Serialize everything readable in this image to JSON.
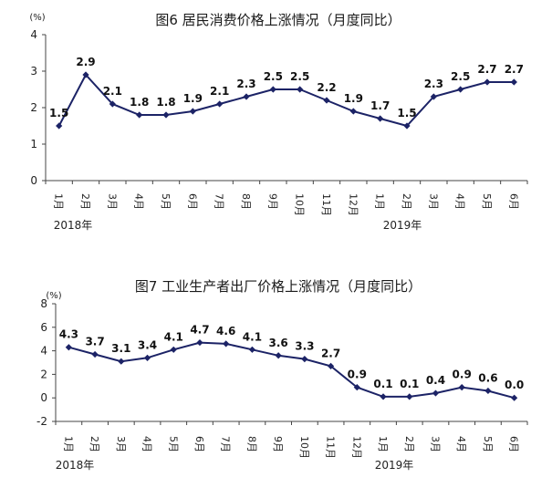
{
  "chart_data": [
    {
      "type": "line",
      "title": "图6   居民消费价格上涨情况（月度同比）",
      "unit": "(%)",
      "ylim": [
        0,
        4
      ],
      "yticks": [
        "0",
        "1",
        "2",
        "3",
        "4"
      ],
      "categories": [
        "1月",
        "2月",
        "3月",
        "4月",
        "5月",
        "6月",
        "7月",
        "8月",
        "9月",
        "10月",
        "11月",
        "12月",
        "1月",
        "2月",
        "3月",
        "4月",
        "5月",
        "6月"
      ],
      "year_labels": [
        "2018年",
        "2019年"
      ],
      "values": [
        1.5,
        2.9,
        2.1,
        1.8,
        1.8,
        1.9,
        2.1,
        2.3,
        2.5,
        2.5,
        2.2,
        1.9,
        1.7,
        1.5,
        2.3,
        2.5,
        2.7,
        2.7
      ],
      "value_labels": [
        "1.5",
        "2.9",
        "2.1",
        "1.8",
        "1.8",
        "1.9",
        "2.1",
        "2.3",
        "2.5",
        "2.5",
        "2.2",
        "1.9",
        "1.7",
        "1.5",
        "2.3",
        "2.5",
        "2.7",
        "2.7"
      ],
      "color": "#1c2366"
    },
    {
      "type": "line",
      "title": "图7   工业生产者出厂价格上涨情况（月度同比）",
      "unit": "(%)",
      "ylim": [
        -2,
        8
      ],
      "yticks": [
        "-2",
        "0",
        "2",
        "4",
        "6",
        "8"
      ],
      "categories": [
        "1月",
        "2月",
        "3月",
        "4月",
        "5月",
        "6月",
        "7月",
        "8月",
        "9月",
        "10月",
        "11月",
        "12月",
        "1月",
        "2月",
        "3月",
        "4月",
        "5月",
        "6月"
      ],
      "year_labels": [
        "2018年",
        "2019年"
      ],
      "values": [
        4.3,
        3.7,
        3.1,
        3.4,
        4.1,
        4.7,
        4.6,
        4.1,
        3.6,
        3.3,
        2.7,
        0.9,
        0.1,
        0.1,
        0.4,
        0.9,
        0.6,
        0.0
      ],
      "value_labels": [
        "4.3",
        "3.7",
        "3.1",
        "3.4",
        "4.1",
        "4.7",
        "4.6",
        "4.1",
        "3.6",
        "3.3",
        "2.7",
        "0.9",
        "0.1",
        "0.1",
        "0.4",
        "0.9",
        "0.6",
        "0.0"
      ],
      "color": "#1c2366"
    }
  ]
}
